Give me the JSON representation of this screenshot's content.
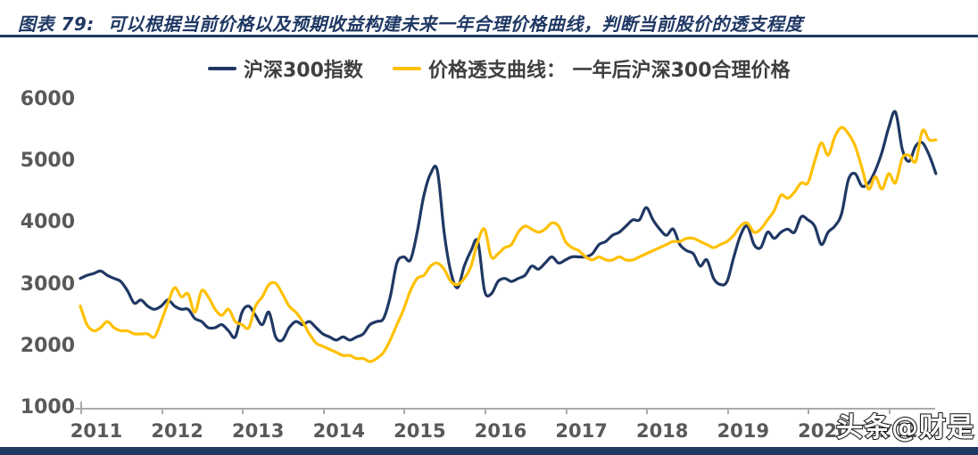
{
  "header": {
    "title": "图表 79:  可以根据当前价格以及预期收益构建未来一年合理价格曲线，判断当前股价的透支程度"
  },
  "watermark": {
    "text": "头条@财是"
  },
  "colors": {
    "navy": "#1f3864",
    "gold": "#ffc000",
    "axis_text": "#595959",
    "axis_line": "#ababab"
  },
  "chart_data": {
    "type": "line",
    "title": "",
    "xlabel": "",
    "ylabel": "",
    "grid": false,
    "legend_position": "top-center",
    "ylim": [
      1000,
      6000
    ],
    "y_ticks": [
      1000,
      2000,
      3000,
      4000,
      5000,
      6000
    ],
    "x_tick_labels": [
      "2011",
      "2012",
      "2013",
      "2014",
      "2015",
      "2016",
      "2017",
      "2018",
      "2019",
      "2020",
      "2021"
    ],
    "x_start": "2011-01",
    "x_interval": "monthly",
    "series": [
      {
        "name": "沪深300指数",
        "color": "#1f3864",
        "values": [
          3100,
          3150,
          3180,
          3220,
          3150,
          3100,
          3050,
          2900,
          2700,
          2750,
          2650,
          2600,
          2650,
          2750,
          2650,
          2600,
          2600,
          2450,
          2400,
          2300,
          2300,
          2350,
          2250,
          2150,
          2550,
          2650,
          2500,
          2350,
          2550,
          2150,
          2100,
          2300,
          2400,
          2350,
          2400,
          2300,
          2200,
          2150,
          2100,
          2150,
          2100,
          2150,
          2200,
          2350,
          2400,
          2450,
          2800,
          3350,
          3450,
          3400,
          3850,
          4450,
          4800,
          4850,
          3850,
          3200,
          2950,
          3300,
          3550,
          3700,
          2900,
          2850,
          3050,
          3100,
          3050,
          3100,
          3150,
          3300,
          3250,
          3350,
          3450,
          3350,
          3400,
          3450,
          3450,
          3450,
          3500,
          3650,
          3700,
          3800,
          3850,
          3950,
          4050,
          4050,
          4250,
          4050,
          3900,
          3800,
          3900,
          3650,
          3550,
          3500,
          3300,
          3400,
          3100,
          3000,
          3050,
          3450,
          3800,
          3950,
          3650,
          3600,
          3850,
          3750,
          3850,
          3900,
          3850,
          4100,
          4050,
          3950,
          3650,
          3850,
          3950,
          4150,
          4700,
          4800,
          4600,
          4650,
          4850,
          5150,
          5550,
          5800,
          5200,
          5000,
          5250,
          5300,
          5100,
          4800
        ]
      },
      {
        "name": "价格透支曲线： 一年后沪深300合理价格",
        "color": "#ffc000",
        "values": [
          2650,
          2350,
          2250,
          2300,
          2400,
          2300,
          2250,
          2250,
          2200,
          2200,
          2200,
          2150,
          2400,
          2700,
          2950,
          2800,
          2850,
          2550,
          2900,
          2800,
          2600,
          2500,
          2600,
          2400,
          2350,
          2300,
          2650,
          2800,
          3000,
          3020,
          2850,
          2650,
          2550,
          2400,
          2200,
          2050,
          2000,
          1950,
          1900,
          1850,
          1850,
          1800,
          1800,
          1750,
          1800,
          1900,
          2100,
          2350,
          2600,
          2900,
          3100,
          3150,
          3300,
          3350,
          3250,
          3050,
          3000,
          3100,
          3300,
          3700,
          3900,
          3450,
          3500,
          3600,
          3650,
          3850,
          3950,
          3900,
          3850,
          3900,
          4000,
          3950,
          3700,
          3600,
          3550,
          3450,
          3400,
          3450,
          3400,
          3400,
          3450,
          3400,
          3400,
          3450,
          3500,
          3550,
          3600,
          3650,
          3700,
          3700,
          3750,
          3750,
          3700,
          3650,
          3600,
          3650,
          3700,
          3800,
          3950,
          4000,
          3850,
          3900,
          4050,
          4200,
          4450,
          4400,
          4500,
          4650,
          4650,
          5000,
          5300,
          5100,
          5400,
          5550,
          5450,
          5250,
          4900,
          4550,
          4750,
          4550,
          4800,
          4650,
          5050,
          5100,
          5000,
          5500,
          5350,
          5350
        ]
      }
    ]
  }
}
